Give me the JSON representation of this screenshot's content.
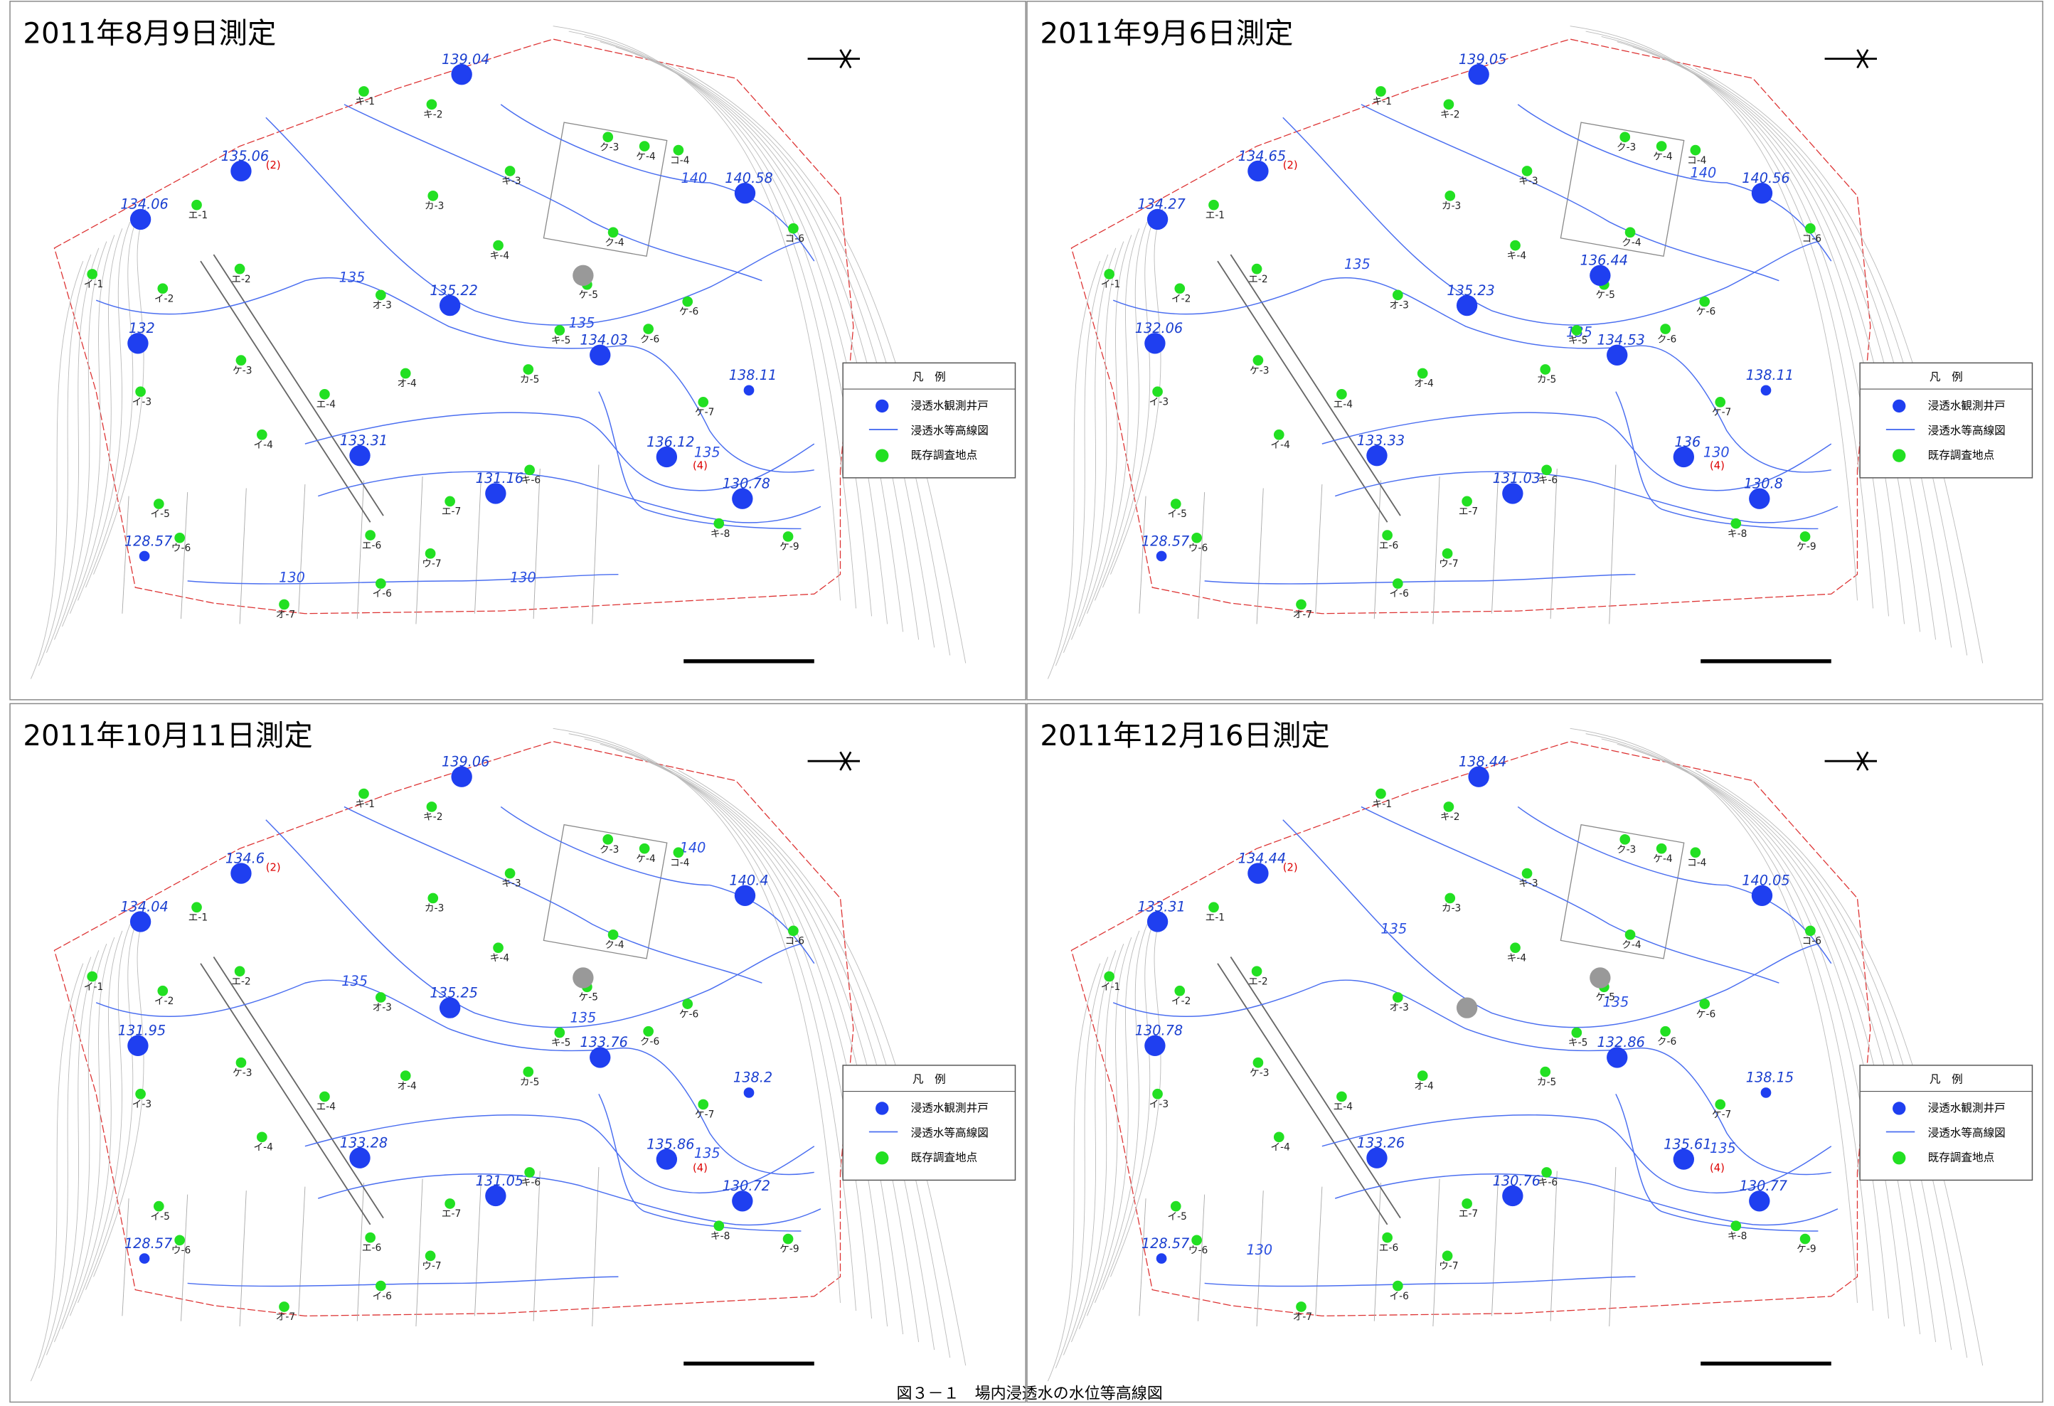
{
  "panels": [
    {
      "title": "2011年8月9日測定",
      "wells": [
        139.04,
        135.06,
        134.06,
        140.58,
        132,
        135.22,
        134.03,
        138.11,
        133.31,
        136.12,
        131.16,
        130.78,
        128.57,
        null
      ],
      "contour_labels": [
        140,
        135,
        135,
        135,
        130,
        130
      ]
    },
    {
      "title": "2011年9月6日測定",
      "wells": [
        139.05,
        134.65,
        134.27,
        140.56,
        132.06,
        135.23,
        134.53,
        138.11,
        133.33,
        136,
        131.03,
        130.8,
        128.57,
        136.44
      ],
      "contour_labels": [
        140,
        135,
        135,
        130
      ]
    },
    {
      "title": "2011年10月11日測定",
      "wells": [
        139.06,
        134.6,
        134.04,
        140.4,
        131.95,
        135.25,
        133.76,
        138.2,
        133.28,
        135.86,
        131.05,
        130.72,
        128.57,
        null
      ],
      "contour_labels": [
        140,
        135,
        135,
        135
      ]
    },
    {
      "title": "2011年12月16日測定",
      "wells": [
        138.44,
        134.44,
        133.31,
        140.05,
        130.78,
        null,
        132.86,
        138.15,
        133.26,
        135.61,
        130.76,
        130.77,
        128.57,
        null
      ],
      "contour_labels": [
        135,
        135,
        135,
        130
      ]
    }
  ],
  "well_notes": [
    "(2)",
    "(4)"
  ],
  "survey_points": [
    "キ-1",
    "キ-2",
    "キ-3",
    "キ-4",
    "キ-5",
    "キ-6",
    "キ-8",
    "ケ-9",
    "ク-3",
    "ケ-4",
    "コ-4",
    "ク-4",
    "ケ-5",
    "ク-6",
    "ケ-6",
    "ケ-7",
    "コ-6",
    "カ-3",
    "オ-3",
    "オ-4",
    "カ-5",
    "エ-1",
    "イ-1",
    "エ-2",
    "イ-2",
    "ケ-3",
    "イ-3",
    "エ-4",
    "イ-4",
    "イ-5",
    "ウ-6",
    "エ-6",
    "エ-7",
    "ウ-7",
    "イ-6",
    "オ-7"
  ],
  "legend": {
    "title": "凡　例",
    "items": [
      "浸透水観測井戸",
      "浸透水等高線図",
      "既存調査地点"
    ]
  },
  "caption": "図３－１　場内浸透水の水位等高線図"
}
